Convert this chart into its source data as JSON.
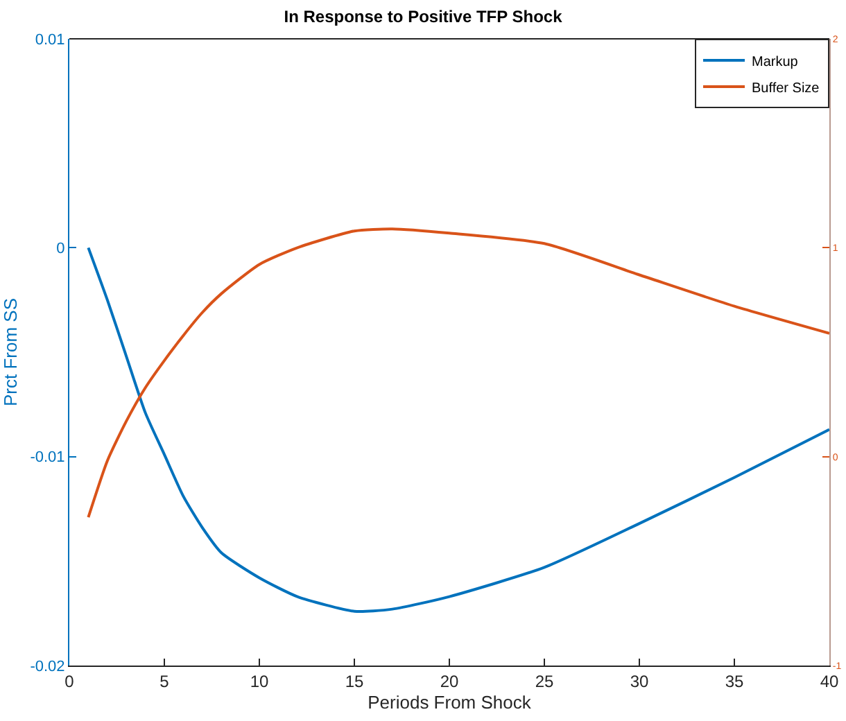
{
  "chart_data": {
    "type": "line",
    "title": "In Response to Positive TFP Shock",
    "xlabel": "Periods From Shock",
    "ylabel": "Prct From SS",
    "x": [
      1,
      2,
      3,
      4,
      5,
      6,
      7,
      8,
      10,
      12,
      15,
      17,
      20,
      25,
      30,
      35,
      40
    ],
    "series": [
      {
        "name": "Markup",
        "color": "#0072bd",
        "values": [
          0,
          -0.0025,
          -0.0052,
          -0.0079,
          -0.0099,
          -0.0119,
          -0.0134,
          -0.0146,
          -0.0158,
          -0.0167,
          -0.0174,
          -0.0173,
          -0.0167,
          -0.0153,
          -0.0132,
          -0.011,
          -0.0087
        ]
      },
      {
        "name": "Buffer Size",
        "color": "#d95319",
        "axis": "y2",
        "values": [
          -0.29,
          -0.02,
          0.17,
          0.33,
          0.46,
          0.58,
          0.69,
          0.78,
          0.92,
          1.0,
          1.08,
          1.09,
          1.07,
          1.02,
          0.87,
          0.72,
          0.59
        ]
      }
    ],
    "xlim": [
      0,
      40
    ],
    "xticks": [
      0,
      5,
      10,
      15,
      20,
      25,
      30,
      35,
      40
    ],
    "ylim": [
      -0.02,
      0.01
    ],
    "yticks": [
      -0.02,
      -0.01,
      0,
      0.01
    ],
    "y2lim": [
      -1,
      2
    ],
    "y2ticks": [
      -1,
      0,
      1,
      2
    ],
    "grid": false,
    "legend": "top right",
    "marker": "none",
    "line_style": "solid"
  }
}
